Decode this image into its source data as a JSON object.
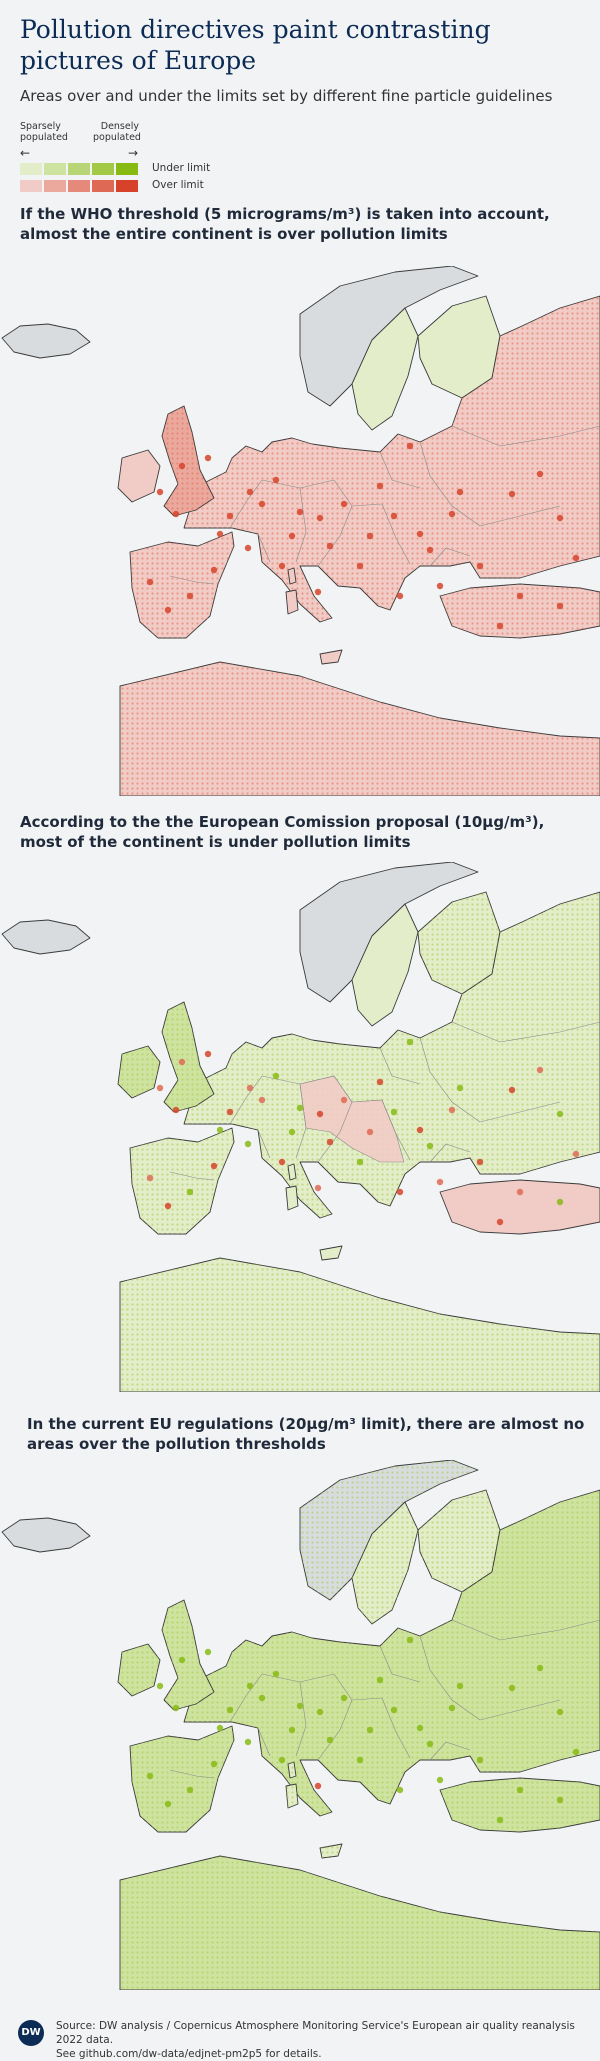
{
  "header": {
    "title": "Pollution directives paint contrasting pictures of Europe",
    "subtitle": "Areas over and under the limits set by different fine particle guidelines"
  },
  "legend": {
    "sparse_label": "Sparsely populated",
    "dense_label": "Densely populated",
    "arrow_left": "←",
    "arrow_right": "→",
    "under_label": "Under limit",
    "over_label": "Over limit",
    "under_colors": [
      "#e3edc9",
      "#cfe3a1",
      "#b8d675",
      "#a2ca46",
      "#87bb12"
    ],
    "over_colors": [
      "#f1cbc5",
      "#eba99e",
      "#e58a7a",
      "#de6a55",
      "#d6432a"
    ]
  },
  "maps": [
    {
      "heading": "If the WHO threshold (5 micrograms/m³) is taken into account, almost the entire continent is over pollution limits",
      "limit_ugm3": 5,
      "predominant": "over"
    },
    {
      "heading": "According to the the European Comission proposal (10µg/m³), most of the continent is under pollution limits",
      "limit_ugm3": 10,
      "predominant": "mixed"
    },
    {
      "heading": "In the current EU regulations (20µg/m³ limit), there are almost no areas over the pollution thresholds",
      "limit_ugm3": 20,
      "predominant": "under"
    }
  ],
  "footer": {
    "logo": "DW",
    "source_line1": "Source: DW analysis / Copernicus Atmosphere Monitoring Service's European air quality reanalysis 2022 data.",
    "source_line2": "See github.com/dw-data/edjnet-pm2p5 for details."
  },
  "colors": {
    "land_gray": "#d9dcdf",
    "sea": "#ffffff",
    "background": "#f2f3f4",
    "title": "#0c2c56"
  }
}
